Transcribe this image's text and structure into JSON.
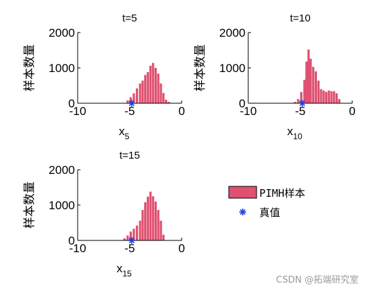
{
  "figure": {
    "legend": {
      "samples": "PIMH样本",
      "truth": "真值"
    },
    "watermark": "CSDN @拓端研究室",
    "colors": {
      "bar": "#E05070",
      "truth": "#2040E0"
    }
  },
  "chart_data": [
    {
      "type": "bar",
      "title": "t=5",
      "xlabel_base": "x",
      "xlabel_sub": "5",
      "ylabel": "样本数量",
      "xlim": [
        -10,
        0
      ],
      "ylim": [
        0,
        2000
      ],
      "xticks": [
        "-10",
        "-5",
        "0"
      ],
      "yticks": [
        "0",
        "1000",
        "2000"
      ],
      "truth_x": -4.8,
      "series": [
        {
          "x": [
            -5.2,
            -4.9,
            -4.6,
            -4.3,
            -4.0,
            -3.75,
            -3.5,
            -3.25,
            -3.0,
            -2.75,
            -2.5,
            -2.25,
            -2.0,
            -1.75,
            -1.5,
            -1.25
          ],
          "values": [
            80,
            170,
            280,
            420,
            560,
            640,
            800,
            880,
            1060,
            1140,
            1000,
            840,
            560,
            290,
            100,
            40
          ]
        }
      ]
    },
    {
      "type": "bar",
      "title": "t=10",
      "xlabel_base": "x",
      "xlabel_sub": "10",
      "ylabel": "样本数量",
      "xlim": [
        -10,
        0
      ],
      "ylim": [
        0,
        2000
      ],
      "xticks": [
        "-10",
        "-5",
        "0"
      ],
      "yticks": [
        "0",
        "1000",
        "2000"
      ],
      "truth_x": -4.8,
      "series": [
        {
          "x": [
            -5.5,
            -5.2,
            -4.9,
            -4.6,
            -4.4,
            -4.2,
            -4.0,
            -3.75,
            -3.5,
            -3.25,
            -3.0,
            -2.75,
            -2.5,
            -2.25,
            -2.0,
            -1.75,
            -1.5,
            -1.25
          ],
          "values": [
            40,
            120,
            320,
            660,
            1180,
            1520,
            1260,
            1030,
            900,
            640,
            400,
            360,
            320,
            360,
            340,
            340,
            280,
            120
          ]
        }
      ]
    },
    {
      "type": "bar",
      "title": "t=15",
      "xlabel_base": "x",
      "xlabel_sub": "15",
      "ylabel": "样本数量",
      "xlim": [
        -10,
        0
      ],
      "ylim": [
        0,
        2000
      ],
      "xticks": [
        "-10",
        "-5",
        "0"
      ],
      "yticks": [
        "0",
        "1000",
        "2000"
      ],
      "truth_x": -4.8,
      "series": [
        {
          "x": [
            -5.5,
            -5.2,
            -4.9,
            -4.6,
            -4.3,
            -4.0,
            -3.75,
            -3.5,
            -3.25,
            -3.0,
            -2.75,
            -2.5,
            -2.25,
            -2.0,
            -1.75
          ],
          "values": [
            60,
            140,
            250,
            330,
            420,
            560,
            860,
            1080,
            1240,
            1380,
            1250,
            1100,
            860,
            560,
            160
          ]
        }
      ]
    }
  ]
}
